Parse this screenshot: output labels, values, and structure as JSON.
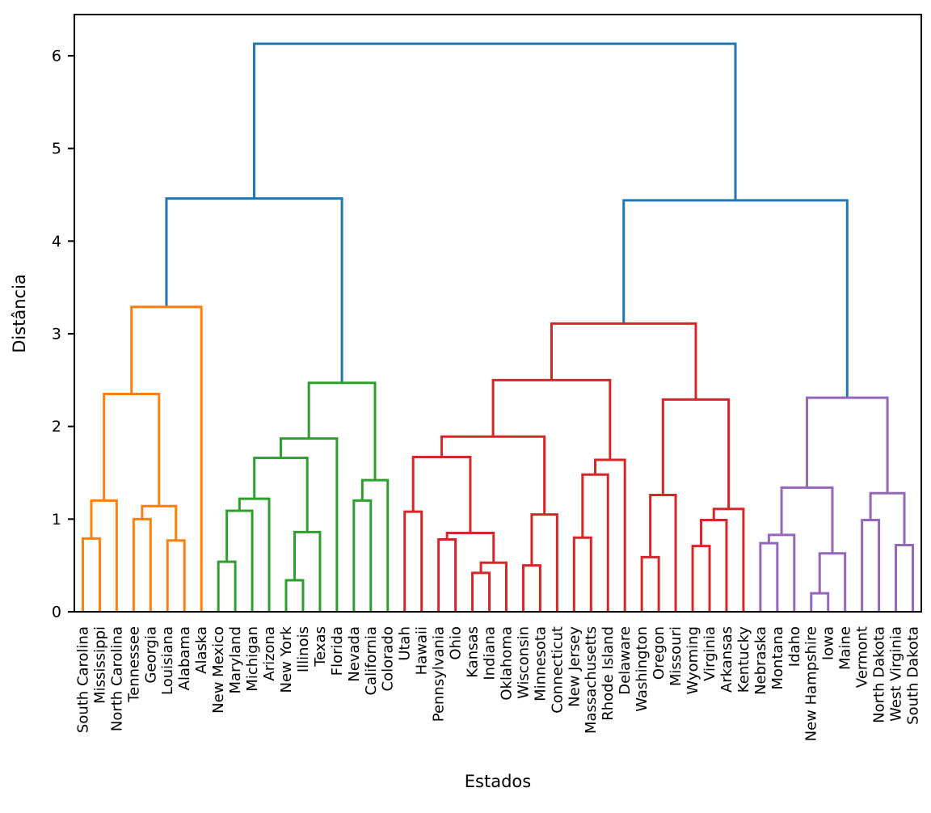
{
  "figure": {
    "background": "#ffffff"
  },
  "chart_data": {
    "type": "dendrogram",
    "title": "",
    "xlabel": "Estados",
    "ylabel": "Distância",
    "yticks": [
      0,
      1,
      2,
      3,
      4,
      5,
      6
    ],
    "ylim": [
      0,
      6.44
    ],
    "grid": false,
    "legend": "none",
    "link_colors": {
      "blue": "#1f77b4",
      "orange": "#ff7f0e",
      "green": "#2ca02c",
      "red": "#d62728",
      "purple": "#9467bd"
    },
    "leaf_label_color": "#000000",
    "leaf_order": [
      "South Carolina",
      "Mississippi",
      "North Carolina",
      "Tennessee",
      "Georgia",
      "Louisiana",
      "Alabama",
      "Alaska",
      "New Mexico",
      "Maryland",
      "Michigan",
      "Arizona",
      "New York",
      "Illinois",
      "Texas",
      "Florida",
      "Nevada",
      "California",
      "Colorado",
      "Utah",
      "Hawaii",
      "Pennsylvania",
      "Ohio",
      "Kansas",
      "Indiana",
      "Oklahoma",
      "Wisconsin",
      "Minnesota",
      "Connecticut",
      "New Jersey",
      "Massachusetts",
      "Rhode Island",
      "Delaware",
      "Washington",
      "Oregon",
      "Missouri",
      "Wyoming",
      "Virginia",
      "Arkansas",
      "Kentucky",
      "Nebraska",
      "Montana",
      "Idaho",
      "New Hampshire",
      "Iowa",
      "Maine",
      "Vermont",
      "North Dakota",
      "West Virginia",
      "South Dakota"
    ],
    "tree": {
      "h": 6.13,
      "color": "blue",
      "children": [
        {
          "h": 4.46,
          "color": "blue",
          "children": [
            {
              "h": 3.29,
              "color": "orange",
              "children": [
                {
                  "h": 2.35,
                  "children": [
                    {
                      "h": 1.2,
                      "children": [
                        {
                          "h": 0.79,
                          "children": [
                            {
                              "leaf": "South Carolina"
                            },
                            {
                              "leaf": "Mississippi"
                            }
                          ]
                        },
                        {
                          "leaf": "North Carolina"
                        }
                      ]
                    },
                    {
                      "h": 1.14,
                      "children": [
                        {
                          "h": 1.0,
                          "children": [
                            {
                              "leaf": "Tennessee"
                            },
                            {
                              "leaf": "Georgia"
                            }
                          ]
                        },
                        {
                          "h": 0.77,
                          "children": [
                            {
                              "leaf": "Louisiana"
                            },
                            {
                              "leaf": "Alabama"
                            }
                          ]
                        }
                      ]
                    }
                  ]
                },
                {
                  "leaf": "Alaska"
                }
              ]
            },
            {
              "h": 2.47,
              "color": "green",
              "children": [
                {
                  "h": 1.87,
                  "children": [
                    {
                      "h": 1.66,
                      "children": [
                        {
                          "h": 1.22,
                          "children": [
                            {
                              "h": 1.09,
                              "children": [
                                {
                                  "h": 0.54,
                                  "children": [
                                    {
                                      "leaf": "New Mexico"
                                    },
                                    {
                                      "leaf": "Maryland"
                                    }
                                  ]
                                },
                                {
                                  "leaf": "Michigan"
                                }
                              ]
                            },
                            {
                              "leaf": "Arizona"
                            }
                          ]
                        },
                        {
                          "h": 0.86,
                          "children": [
                            {
                              "h": 0.34,
                              "children": [
                                {
                                  "leaf": "New York"
                                },
                                {
                                  "leaf": "Illinois"
                                }
                              ]
                            },
                            {
                              "leaf": "Texas"
                            }
                          ]
                        }
                      ]
                    },
                    {
                      "leaf": "Florida"
                    }
                  ]
                },
                {
                  "h": 1.42,
                  "children": [
                    {
                      "h": 1.2,
                      "children": [
                        {
                          "leaf": "Nevada"
                        },
                        {
                          "leaf": "California"
                        }
                      ]
                    },
                    {
                      "leaf": "Colorado"
                    }
                  ]
                }
              ]
            }
          ]
        },
        {
          "h": 4.44,
          "color": "blue",
          "children": [
            {
              "h": 3.11,
              "color": "red",
              "children": [
                {
                  "h": 2.5,
                  "children": [
                    {
                      "h": 1.89,
                      "children": [
                        {
                          "h": 1.67,
                          "children": [
                            {
                              "h": 1.08,
                              "children": [
                                {
                                  "leaf": "Utah"
                                },
                                {
                                  "leaf": "Hawaii"
                                }
                              ]
                            },
                            {
                              "h": 0.85,
                              "children": [
                                {
                                  "h": 0.78,
                                  "children": [
                                    {
                                      "leaf": "Pennsylvania"
                                    },
                                    {
                                      "leaf": "Ohio"
                                    }
                                  ]
                                },
                                {
                                  "h": 0.53,
                                  "children": [
                                    {
                                      "h": 0.42,
                                      "children": [
                                        {
                                          "leaf": "Kansas"
                                        },
                                        {
                                          "leaf": "Indiana"
                                        }
                                      ]
                                    },
                                    {
                                      "leaf": "Oklahoma"
                                    }
                                  ]
                                }
                              ]
                            }
                          ]
                        },
                        {
                          "h": 1.05,
                          "children": [
                            {
                              "h": 0.5,
                              "children": [
                                {
                                  "leaf": "Wisconsin"
                                },
                                {
                                  "leaf": "Minnesota"
                                }
                              ]
                            },
                            {
                              "leaf": "Connecticut"
                            }
                          ]
                        }
                      ]
                    },
                    {
                      "h": 1.64,
                      "children": [
                        {
                          "h": 1.48,
                          "children": [
                            {
                              "h": 0.8,
                              "children": [
                                {
                                  "leaf": "New Jersey"
                                },
                                {
                                  "leaf": "Massachusetts"
                                }
                              ]
                            },
                            {
                              "leaf": "Rhode Island"
                            }
                          ]
                        },
                        {
                          "leaf": "Delaware"
                        }
                      ]
                    }
                  ]
                },
                {
                  "h": 2.29,
                  "children": [
                    {
                      "h": 1.26,
                      "children": [
                        {
                          "h": 0.59,
                          "children": [
                            {
                              "leaf": "Washington"
                            },
                            {
                              "leaf": "Oregon"
                            }
                          ]
                        },
                        {
                          "leaf": "Missouri"
                        }
                      ]
                    },
                    {
                      "h": 1.11,
                      "children": [
                        {
                          "h": 0.99,
                          "children": [
                            {
                              "h": 0.71,
                              "children": [
                                {
                                  "leaf": "Wyoming"
                                },
                                {
                                  "leaf": "Virginia"
                                }
                              ]
                            },
                            {
                              "leaf": "Arkansas"
                            }
                          ]
                        },
                        {
                          "leaf": "Kentucky"
                        }
                      ]
                    }
                  ]
                }
              ]
            },
            {
              "h": 2.31,
              "color": "purple",
              "children": [
                {
                  "h": 1.34,
                  "children": [
                    {
                      "h": 0.83,
                      "children": [
                        {
                          "h": 0.74,
                          "children": [
                            {
                              "leaf": "Nebraska"
                            },
                            {
                              "leaf": "Montana"
                            }
                          ]
                        },
                        {
                          "leaf": "Idaho"
                        }
                      ]
                    },
                    {
                      "h": 0.63,
                      "children": [
                        {
                          "h": 0.2,
                          "children": [
                            {
                              "leaf": "New Hampshire"
                            },
                            {
                              "leaf": "Iowa"
                            }
                          ]
                        },
                        {
                          "leaf": "Maine"
                        }
                      ]
                    }
                  ]
                },
                {
                  "h": 1.28,
                  "children": [
                    {
                      "h": 0.99,
                      "children": [
                        {
                          "leaf": "Vermont"
                        },
                        {
                          "leaf": "North Dakota"
                        }
                      ]
                    },
                    {
                      "h": 0.72,
                      "children": [
                        {
                          "leaf": "West Virginia"
                        },
                        {
                          "leaf": "South Dakota"
                        }
                      ]
                    }
                  ]
                }
              ]
            }
          ]
        }
      ]
    }
  }
}
